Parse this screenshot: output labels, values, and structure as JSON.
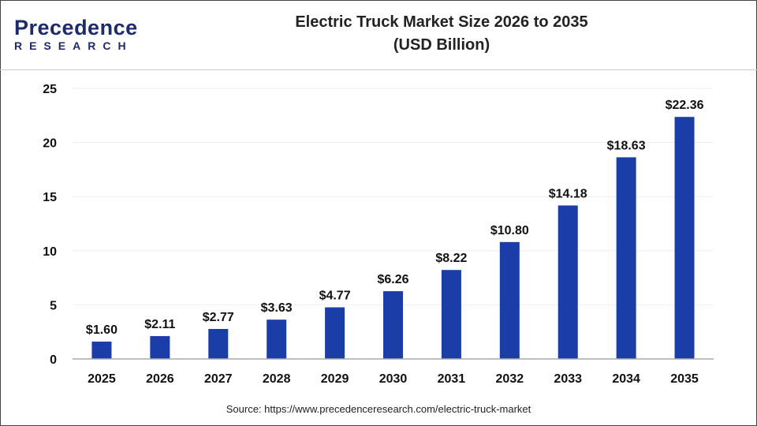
{
  "logo": {
    "line1": "Precedence",
    "line2": "RESEARCH"
  },
  "title_line1": "Electric Truck Market Size 2026 to 2035",
  "title_line2": "(USD Billion)",
  "source": "Source: https://www.precedenceresearch.com/electric-truck-market",
  "chart_data": {
    "type": "bar",
    "title": "Electric Truck Market Size 2026 to 2035 (USD Billion)",
    "categories": [
      "2025",
      "2026",
      "2027",
      "2028",
      "2029",
      "2030",
      "2031",
      "2032",
      "2033",
      "2034",
      "2035"
    ],
    "values": [
      1.6,
      2.11,
      2.77,
      3.63,
      4.77,
      6.26,
      8.22,
      10.8,
      14.18,
      18.63,
      22.36
    ],
    "data_labels": [
      "$1.60",
      "$2.11",
      "$2.77",
      "$3.63",
      "$4.77",
      "$6.26",
      "$8.22",
      "$10.80",
      "$14.18",
      "$18.63",
      "$22.36"
    ],
    "ylim": [
      0,
      25
    ],
    "yticks": [
      0,
      5,
      10,
      15,
      20,
      25
    ],
    "grid": true,
    "bar_color": "#1a3da8"
  }
}
